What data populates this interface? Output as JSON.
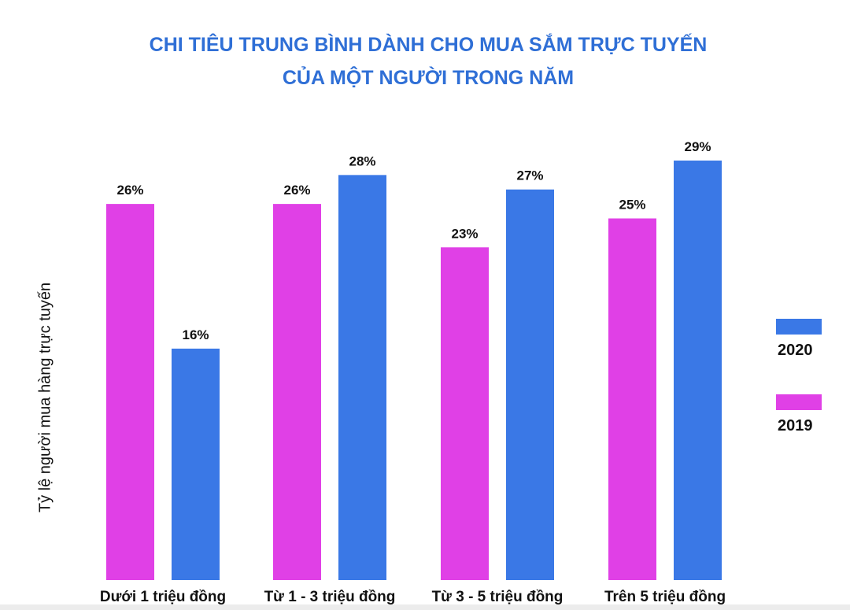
{
  "chart_data": {
    "type": "bar",
    "title_lines": [
      "CHI TIÊU TRUNG BÌNH DÀNH CHO MUA SẮM TRỰC TUYẾN",
      "CỦA MỘT NGƯỜI TRONG NĂM"
    ],
    "xlabel": "",
    "ylabel": "Tỷ lệ người mua hàng trực tuyến",
    "categories": [
      "Dưới 1 triệu đồng",
      "Từ 1 - 3 triệu đồng",
      "Từ 3 - 5 triệu đồng",
      "Trên 5 triệu đồng"
    ],
    "series": [
      {
        "name": "2019",
        "color": "#e040e6",
        "values": [
          26,
          26,
          23,
          25
        ],
        "labels": [
          "26%",
          "26%",
          "23%",
          "25%"
        ]
      },
      {
        "name": "2020",
        "color": "#3a78e6",
        "values": [
          16,
          28,
          27,
          29
        ],
        "labels": [
          "16%",
          "28%",
          "27%",
          "29%"
        ]
      }
    ],
    "ylim": [
      0,
      30
    ],
    "grid": false,
    "legend_position": "right",
    "legend_order": [
      "2020",
      "2019"
    ]
  }
}
